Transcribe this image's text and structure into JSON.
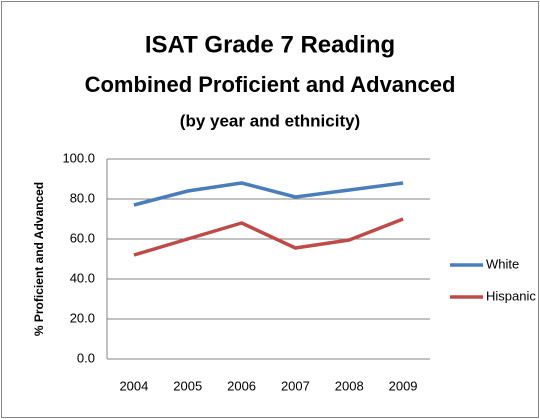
{
  "chart_data": {
    "type": "line",
    "title": "ISAT Grade 7 Reading",
    "title_line2": "Combined Proficient and Advanced",
    "subtitle": "(by year and ethnicity)",
    "y_label": "% Proficient and Advanced",
    "categories": [
      "2004",
      "2005",
      "2006",
      "2007",
      "2008",
      "2009"
    ],
    "series": [
      {
        "name": "White",
        "color": "#4a7ebb",
        "values": [
          77,
          84,
          88,
          81,
          84.5,
          88
        ]
      },
      {
        "name": "Hispanic",
        "color": "#be4b48",
        "values": [
          52,
          60,
          68,
          55.5,
          59.5,
          70
        ]
      }
    ],
    "ylim": [
      0,
      100
    ],
    "yticks": [
      {
        "value": 0,
        "label": "0.0"
      },
      {
        "value": 20,
        "label": "20.0"
      },
      {
        "value": 40,
        "label": "40.0"
      },
      {
        "value": 60,
        "label": "60.0"
      },
      {
        "value": 80,
        "label": "80.0"
      },
      {
        "value": 100,
        "label": "100.0"
      }
    ],
    "grid": true,
    "legend": "right"
  }
}
